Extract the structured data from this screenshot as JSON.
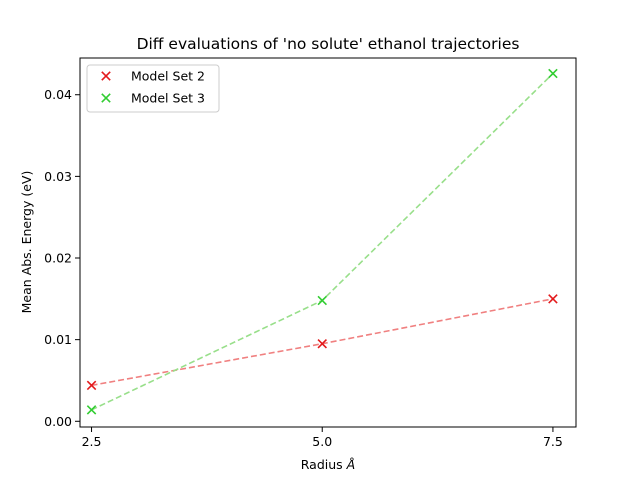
{
  "chart_data": {
    "type": "scatter",
    "title": "Diff evaluations of 'no solute' ethanol trajectories",
    "xlabel": "Radius ",
    "xlabel_symbol": "Å",
    "ylabel": "Mean Abs. Energy (eV)",
    "x": [
      2.5,
      5.0,
      7.5
    ],
    "x_tick_labels": [
      "2.5",
      "5.0",
      "7.5"
    ],
    "y_ticks": [
      0.0,
      0.01,
      0.02,
      0.03,
      0.04
    ],
    "y_tick_labels": [
      "0.00",
      "0.01",
      "0.02",
      "0.03",
      "0.04"
    ],
    "xlim": [
      2.375,
      7.75
    ],
    "ylim": [
      -0.0007,
      0.0445
    ],
    "marker": "x",
    "connect_with": "dashed-line",
    "grid": false,
    "legend_position": "top-left",
    "series": [
      {
        "name": "Model Set 2",
        "values": [
          0.0044,
          0.0095,
          0.015
        ],
        "color": "#e31a1c",
        "line_color": "#f08080"
      },
      {
        "name": "Model Set 3",
        "values": [
          0.0014,
          0.0148,
          0.0426
        ],
        "color": "#32cd32",
        "line_color": "#98df8a"
      }
    ]
  }
}
